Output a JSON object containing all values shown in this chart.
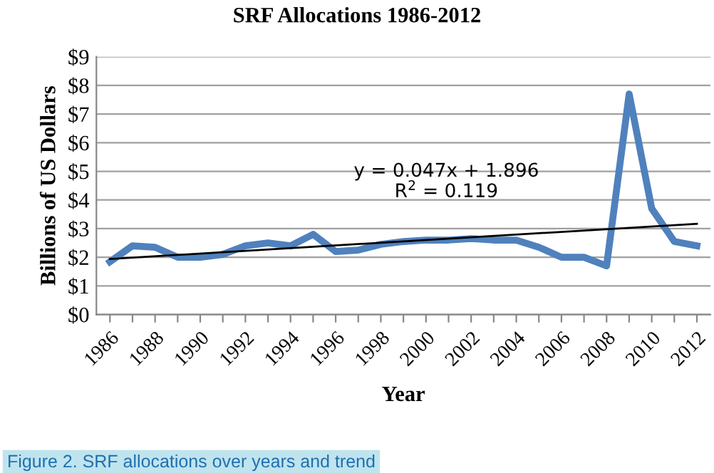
{
  "chart_data": {
    "type": "line",
    "title": "SRF Allocations 1986-2012",
    "xlabel": "Year",
    "ylabel": "Billions of US Dollars",
    "categories": [
      "1986",
      null,
      "1988",
      null,
      "1990",
      null,
      "1992",
      null,
      "1994",
      null,
      "1996",
      null,
      "1998",
      null,
      "2000",
      null,
      "2002",
      null,
      "2004",
      null,
      "2006",
      null,
      "2008",
      null,
      "2010",
      null,
      "2012"
    ],
    "series": [
      {
        "color": "#4f81bd",
        "values": [
          1.84,
          2.4,
          2.35,
          2.0,
          2.0,
          2.1,
          2.4,
          2.5,
          2.4,
          2.8,
          2.2,
          2.25,
          2.45,
          2.55,
          2.6,
          2.6,
          2.65,
          2.6,
          2.6,
          2.35,
          2.0,
          2.0,
          1.7,
          7.7,
          3.7,
          2.55,
          2.4
        ]
      },
      {
        "color": "#000000",
        "values": [
          1.94,
          null,
          null,
          null,
          null,
          null,
          null,
          null,
          null,
          null,
          null,
          null,
          null,
          null,
          null,
          null,
          null,
          null,
          null,
          null,
          null,
          null,
          null,
          null,
          null,
          null,
          3.17
        ]
      }
    ],
    "ylim": [
      0,
      9
    ],
    "yticks": [
      {
        "value": 0,
        "label": "$0"
      },
      {
        "value": 1,
        "label": "$1"
      },
      {
        "value": 2,
        "label": "$2"
      },
      {
        "value": 3,
        "label": "$3"
      },
      {
        "value": 4,
        "label": "$4"
      },
      {
        "value": 5,
        "label": "$5"
      },
      {
        "value": 6,
        "label": "$6"
      },
      {
        "value": 7,
        "label": "$7"
      },
      {
        "value": 8,
        "label": "$8"
      },
      {
        "value": 9,
        "label": "$9"
      }
    ],
    "grid": "y",
    "legend": false,
    "marker": "none",
    "line_style": "solid",
    "annotations": [
      "y = 0.047x + 1.896",
      "R$^{2}$ = 0.119",
      "Figure 2. SRF allocations over years and trend"
    ]
  }
}
